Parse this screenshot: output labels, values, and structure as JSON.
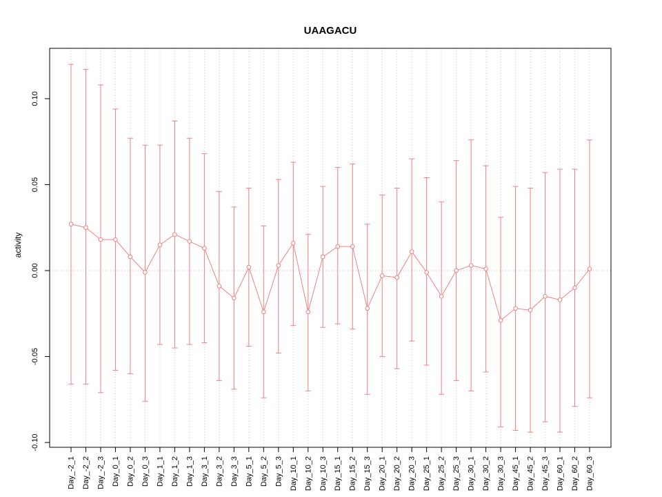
{
  "chart_data": {
    "type": "line",
    "title": "UAAGACU",
    "xlabel": "",
    "ylabel": "activity",
    "ylim": [
      -0.1028,
      0.1293
    ],
    "yticks": [
      -0.1,
      -0.05,
      0.0,
      0.05,
      0.1
    ],
    "grid": "vertical-dotted",
    "zero_line": true,
    "legend": "none",
    "series_color": "#f08080",
    "grid_color": "#c8c8c8",
    "zero_line_color": "#f2a6a6",
    "point_style": "open-circle",
    "error_bars": true,
    "categories": [
      "Day_-2_1",
      "Day_-2_2",
      "Day_-2_3",
      "Day_0_1",
      "Day_0_2",
      "Day_0_3",
      "Day_1_1",
      "Day_1_2",
      "Day_1_3",
      "Day_3_1",
      "Day_3_2",
      "Day_3_3",
      "Day_5_1",
      "Day_5_2",
      "Day_5_3",
      "Day_10_1",
      "Day_10_2",
      "Day_10_3",
      "Day_15_1",
      "Day_15_2",
      "Day_15_3",
      "Day_20_1",
      "Day_20_2",
      "Day_20_3",
      "Day_25_1",
      "Day_25_2",
      "Day_25_3",
      "Day_30_1",
      "Day_30_2",
      "Day_30_3",
      "Day_45_1",
      "Day_45_2",
      "Day_45_3",
      "Day_60_1",
      "Day_60_2",
      "Day_60_3"
    ],
    "values": [
      0.027,
      0.025,
      0.018,
      0.018,
      0.008,
      -0.001,
      0.015,
      0.021,
      0.017,
      0.013,
      -0.009,
      -0.016,
      0.002,
      -0.024,
      0.003,
      0.016,
      -0.024,
      0.008,
      0.014,
      0.014,
      -0.022,
      -0.003,
      -0.004,
      0.011,
      -0.001,
      -0.015,
      0.0,
      0.003,
      0.001,
      -0.029,
      -0.022,
      -0.023,
      -0.015,
      -0.017,
      -0.01,
      0.001
    ],
    "error_upper": [
      0.12,
      0.117,
      0.108,
      0.094,
      0.077,
      0.073,
      0.073,
      0.087,
      0.077,
      0.068,
      0.046,
      0.037,
      0.048,
      0.026,
      0.053,
      0.063,
      0.021,
      0.049,
      0.06,
      0.062,
      0.027,
      0.044,
      0.048,
      0.065,
      0.054,
      0.04,
      0.064,
      0.076,
      0.061,
      0.031,
      0.049,
      0.048,
      0.057,
      0.059,
      0.059,
      0.076
    ],
    "error_lower": [
      -0.066,
      -0.066,
      -0.071,
      -0.058,
      -0.06,
      -0.076,
      -0.043,
      -0.045,
      -0.043,
      -0.042,
      -0.064,
      -0.069,
      -0.044,
      -0.074,
      -0.048,
      -0.032,
      -0.07,
      -0.033,
      -0.031,
      -0.034,
      -0.072,
      -0.05,
      -0.057,
      -0.041,
      -0.055,
      -0.072,
      -0.064,
      -0.07,
      -0.059,
      -0.091,
      -0.093,
      -0.094,
      -0.088,
      -0.094,
      -0.079,
      -0.074
    ]
  }
}
